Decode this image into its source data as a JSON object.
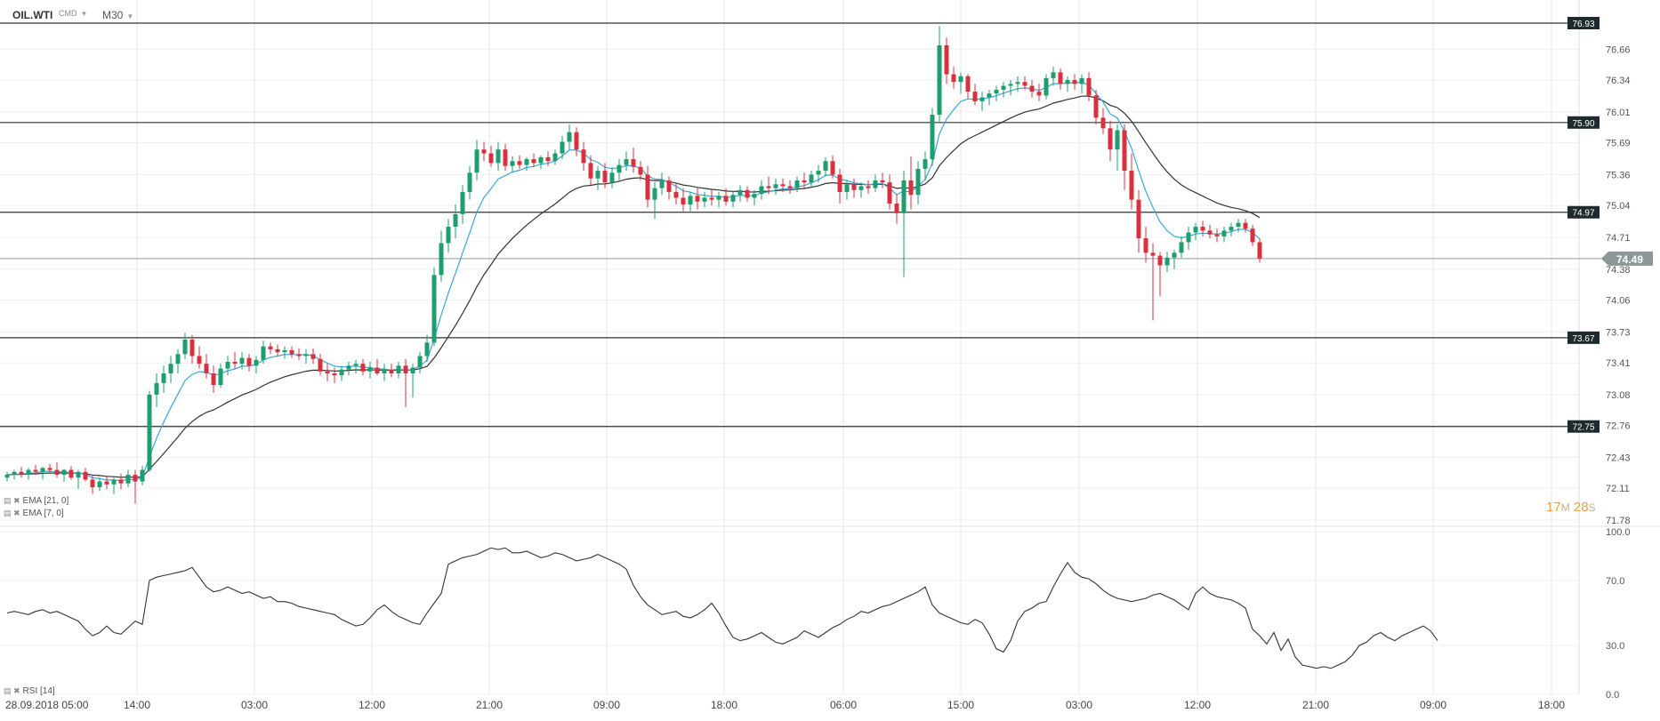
{
  "header": {
    "symbol": "OIL.WTI",
    "market": "CMD",
    "timeframe": "M30"
  },
  "indicators": [
    {
      "name": "EMA",
      "params": "[21, 0]"
    },
    {
      "name": "EMA",
      "params": "[7, 0]"
    },
    {
      "name": "RSI",
      "params": "[14]"
    }
  ],
  "timer": {
    "minutes": "17",
    "m_unit": "M",
    "seconds": "28",
    "s_unit": "S"
  },
  "colors": {
    "up": "#1e9e6e",
    "down": "#d9303e",
    "ema7": "#3aa7d8",
    "ema21": "#333333",
    "grid": "#e6e6e6"
  },
  "chart_data": {
    "type": "candlestick",
    "price_axis": {
      "ylim": [
        71.78,
        76.93
      ],
      "ticks": [
        "76.66",
        "76.34",
        "76.01",
        "75.69",
        "75.36",
        "75.04",
        "74.71",
        "74.38",
        "74.06",
        "73.73",
        "73.41",
        "73.08",
        "72.76",
        "72.43",
        "72.11",
        "71.78"
      ]
    },
    "current_price": "74.49",
    "levels": [
      "76.93",
      "75.90",
      "74.97",
      "73.67",
      "72.75"
    ],
    "x_labels": [
      "28.09.2018  05:00",
      "14:00",
      "03:00",
      "12:00",
      "21:00",
      "09:00",
      "18:00",
      "06:00",
      "15:00",
      "03:00",
      "12:00",
      "21:00",
      "09:00",
      "18:00"
    ],
    "rsi_axis": {
      "ylim": [
        0,
        100
      ],
      "ticks": [
        "100.0",
        "70.0",
        "30.0",
        "0.0"
      ]
    },
    "candles": [
      [
        72.22,
        72.28,
        72.18,
        72.25
      ],
      [
        72.25,
        72.3,
        72.2,
        72.28
      ],
      [
        72.28,
        72.33,
        72.22,
        72.25
      ],
      [
        72.25,
        72.32,
        72.2,
        72.3
      ],
      [
        72.3,
        72.35,
        72.25,
        72.28
      ],
      [
        72.28,
        72.33,
        72.2,
        72.32
      ],
      [
        72.32,
        72.36,
        72.26,
        72.3
      ],
      [
        72.3,
        72.38,
        72.22,
        72.25
      ],
      [
        72.25,
        72.31,
        72.18,
        72.3
      ],
      [
        72.3,
        72.34,
        72.2,
        72.22
      ],
      [
        72.22,
        72.3,
        72.1,
        72.28
      ],
      [
        72.28,
        72.32,
        72.18,
        72.2
      ],
      [
        72.2,
        72.25,
        72.05,
        72.12
      ],
      [
        72.12,
        72.22,
        72.08,
        72.18
      ],
      [
        72.18,
        72.24,
        72.1,
        72.15
      ],
      [
        72.15,
        72.22,
        72.05,
        72.2
      ],
      [
        72.2,
        72.26,
        72.1,
        72.16
      ],
      [
        72.16,
        72.3,
        72.12,
        72.25
      ],
      [
        72.25,
        72.3,
        71.95,
        72.18
      ],
      [
        72.18,
        72.34,
        72.14,
        72.3
      ],
      [
        72.3,
        73.12,
        72.28,
        73.08
      ],
      [
        73.08,
        73.3,
        72.95,
        73.2
      ],
      [
        73.2,
        73.38,
        73.1,
        73.3
      ],
      [
        73.3,
        73.48,
        73.2,
        73.4
      ],
      [
        73.4,
        73.55,
        73.3,
        73.5
      ],
      [
        73.5,
        73.72,
        73.45,
        73.65
      ],
      [
        73.65,
        73.7,
        73.4,
        73.48
      ],
      [
        73.48,
        73.58,
        73.35,
        73.4
      ],
      [
        73.4,
        73.5,
        73.25,
        73.3
      ],
      [
        73.3,
        73.38,
        73.1,
        73.18
      ],
      [
        73.18,
        73.4,
        73.15,
        73.35
      ],
      [
        73.35,
        73.48,
        73.28,
        73.42
      ],
      [
        73.42,
        73.52,
        73.35,
        73.4
      ],
      [
        73.4,
        73.52,
        73.34,
        73.46
      ],
      [
        73.46,
        73.5,
        73.32,
        73.38
      ],
      [
        73.38,
        73.48,
        73.3,
        73.44
      ],
      [
        73.44,
        73.64,
        73.4,
        73.58
      ],
      [
        73.58,
        73.62,
        73.5,
        73.55
      ],
      [
        73.55,
        73.6,
        73.48,
        73.52
      ],
      [
        73.52,
        73.58,
        73.45,
        73.54
      ],
      [
        73.54,
        73.58,
        73.46,
        73.5
      ],
      [
        73.5,
        73.56,
        73.44,
        73.48
      ],
      [
        73.48,
        73.55,
        73.4,
        73.5
      ],
      [
        73.5,
        73.56,
        73.4,
        73.45
      ],
      [
        73.45,
        73.5,
        73.28,
        73.32
      ],
      [
        73.32,
        73.4,
        73.22,
        73.3
      ],
      [
        73.3,
        73.36,
        73.2,
        73.28
      ],
      [
        73.28,
        73.38,
        73.22,
        73.34
      ],
      [
        73.34,
        73.42,
        73.28,
        73.38
      ],
      [
        73.38,
        73.44,
        73.3,
        73.4
      ],
      [
        73.4,
        73.45,
        73.28,
        73.32
      ],
      [
        73.32,
        73.42,
        73.25,
        73.36
      ],
      [
        73.36,
        73.45,
        73.28,
        73.3
      ],
      [
        73.3,
        73.4,
        73.22,
        73.34
      ],
      [
        73.34,
        73.4,
        73.26,
        73.3
      ],
      [
        73.3,
        73.42,
        73.25,
        73.38
      ],
      [
        73.38,
        73.45,
        72.95,
        73.3
      ],
      [
        73.3,
        73.4,
        73.05,
        73.36
      ],
      [
        73.36,
        73.52,
        73.3,
        73.48
      ],
      [
        73.48,
        73.7,
        73.42,
        73.62
      ],
      [
        73.62,
        74.4,
        73.58,
        74.32
      ],
      [
        74.32,
        74.78,
        74.25,
        74.65
      ],
      [
        74.65,
        74.9,
        74.55,
        74.82
      ],
      [
        74.82,
        75.05,
        74.7,
        74.95
      ],
      [
        74.95,
        75.25,
        74.85,
        75.18
      ],
      [
        75.18,
        75.45,
        75.1,
        75.38
      ],
      [
        75.38,
        75.72,
        75.3,
        75.62
      ],
      [
        75.62,
        75.7,
        75.5,
        75.58
      ],
      [
        75.58,
        75.66,
        75.44,
        75.48
      ],
      [
        75.48,
        75.7,
        75.4,
        75.62
      ],
      [
        75.62,
        75.68,
        75.4,
        75.45
      ],
      [
        75.45,
        75.55,
        75.38,
        75.5
      ],
      [
        75.5,
        75.56,
        75.42,
        75.46
      ],
      [
        75.46,
        75.54,
        75.4,
        75.52
      ],
      [
        75.52,
        75.58,
        75.44,
        75.48
      ],
      [
        75.48,
        75.56,
        75.42,
        75.54
      ],
      [
        75.54,
        75.6,
        75.45,
        75.5
      ],
      [
        75.5,
        75.62,
        75.46,
        75.58
      ],
      [
        75.58,
        75.76,
        75.52,
        75.7
      ],
      [
        75.7,
        75.88,
        75.62,
        75.8
      ],
      [
        75.8,
        75.85,
        75.55,
        75.62
      ],
      [
        75.62,
        75.7,
        75.4,
        75.48
      ],
      [
        75.48,
        75.56,
        75.25,
        75.32
      ],
      [
        75.32,
        75.45,
        75.2,
        75.4
      ],
      [
        75.4,
        75.48,
        75.22,
        75.28
      ],
      [
        75.28,
        75.44,
        75.22,
        75.38
      ],
      [
        75.38,
        75.52,
        75.3,
        75.46
      ],
      [
        75.46,
        75.6,
        75.4,
        75.52
      ],
      [
        75.52,
        75.64,
        75.38,
        75.44
      ],
      [
        75.44,
        75.5,
        75.3,
        75.36
      ],
      [
        75.36,
        75.45,
        75.02,
        75.1
      ],
      [
        75.1,
        75.28,
        74.9,
        75.22
      ],
      [
        75.22,
        75.38,
        75.15,
        75.3
      ],
      [
        75.3,
        75.34,
        75.1,
        75.18
      ],
      [
        75.18,
        75.28,
        75.05,
        75.12
      ],
      [
        75.12,
        75.22,
        74.98,
        75.05
      ],
      [
        75.05,
        75.18,
        74.98,
        75.14
      ],
      [
        75.14,
        75.22,
        75.0,
        75.08
      ],
      [
        75.08,
        75.18,
        75.02,
        75.12
      ],
      [
        75.12,
        75.2,
        75.04,
        75.1
      ],
      [
        75.1,
        75.18,
        75.02,
        75.14
      ],
      [
        75.14,
        75.22,
        75.04,
        75.08
      ],
      [
        75.08,
        75.18,
        75.02,
        75.15
      ],
      [
        75.15,
        75.25,
        75.08,
        75.2
      ],
      [
        75.2,
        75.24,
        75.08,
        75.12
      ],
      [
        75.12,
        75.2,
        75.04,
        75.16
      ],
      [
        75.16,
        75.3,
        75.1,
        75.24
      ],
      [
        75.24,
        75.34,
        75.16,
        75.22
      ],
      [
        75.22,
        75.32,
        75.15,
        75.26
      ],
      [
        75.26,
        75.32,
        75.18,
        75.24
      ],
      [
        75.24,
        75.3,
        75.16,
        75.22
      ],
      [
        75.22,
        75.34,
        75.18,
        75.3
      ],
      [
        75.3,
        75.38,
        75.22,
        75.28
      ],
      [
        75.28,
        75.4,
        75.22,
        75.36
      ],
      [
        75.36,
        75.46,
        75.28,
        75.4
      ],
      [
        75.4,
        75.54,
        75.34,
        75.5
      ],
      [
        75.5,
        75.56,
        75.32,
        75.36
      ],
      [
        75.36,
        75.42,
        75.06,
        75.18
      ],
      [
        75.18,
        75.3,
        75.1,
        75.26
      ],
      [
        75.26,
        75.32,
        75.12,
        75.2
      ],
      [
        75.2,
        75.28,
        75.12,
        75.24
      ],
      [
        75.24,
        75.3,
        75.16,
        75.22
      ],
      [
        75.22,
        75.36,
        75.18,
        75.3
      ],
      [
        75.3,
        75.38,
        75.22,
        75.28
      ],
      [
        75.28,
        75.36,
        75.0,
        75.06
      ],
      [
        75.06,
        75.16,
        74.85,
        74.96
      ],
      [
        74.96,
        75.4,
        74.3,
        75.3
      ],
      [
        75.3,
        75.55,
        75.0,
        75.15
      ],
      [
        75.15,
        75.5,
        75.05,
        75.42
      ],
      [
        75.42,
        75.6,
        75.3,
        75.52
      ],
      [
        75.52,
        76.05,
        75.45,
        75.98
      ],
      [
        75.98,
        76.9,
        75.9,
        76.7
      ],
      [
        76.7,
        76.78,
        76.3,
        76.4
      ],
      [
        76.4,
        76.48,
        76.25,
        76.32
      ],
      [
        76.32,
        76.42,
        76.2,
        76.38
      ],
      [
        76.38,
        76.4,
        76.15,
        76.22
      ],
      [
        76.22,
        76.3,
        76.08,
        76.12
      ],
      [
        76.12,
        76.22,
        76.02,
        76.16
      ],
      [
        76.16,
        76.24,
        76.08,
        76.2
      ],
      [
        76.2,
        76.28,
        76.12,
        76.24
      ],
      [
        76.24,
        76.32,
        76.16,
        76.28
      ],
      [
        76.28,
        76.34,
        76.18,
        76.3
      ],
      [
        76.3,
        76.38,
        76.22,
        76.32
      ],
      [
        76.32,
        76.38,
        76.24,
        76.28
      ],
      [
        76.28,
        76.34,
        76.16,
        76.22
      ],
      [
        76.22,
        76.3,
        76.12,
        76.18
      ],
      [
        76.18,
        76.4,
        76.14,
        76.36
      ],
      [
        76.36,
        76.48,
        76.28,
        76.42
      ],
      [
        76.42,
        76.46,
        76.24,
        76.3
      ],
      [
        76.3,
        76.38,
        76.22,
        76.34
      ],
      [
        76.34,
        76.4,
        76.24,
        76.3
      ],
      [
        76.3,
        76.4,
        76.2,
        76.36
      ],
      [
        76.36,
        76.42,
        76.12,
        76.18
      ],
      [
        76.18,
        76.24,
        75.88,
        75.95
      ],
      [
        75.95,
        76.05,
        75.78,
        75.84
      ],
      [
        75.84,
        75.92,
        75.5,
        75.62
      ],
      [
        75.62,
        75.88,
        75.4,
        75.82
      ],
      [
        75.82,
        75.88,
        75.2,
        75.4
      ],
      [
        75.4,
        75.58,
        75.0,
        75.1
      ],
      [
        75.1,
        75.2,
        74.55,
        74.7
      ],
      [
        74.7,
        74.82,
        74.45,
        74.55
      ],
      [
        74.55,
        74.65,
        73.85,
        74.52
      ],
      [
        74.52,
        74.56,
        74.1,
        74.42
      ],
      [
        74.42,
        74.56,
        74.35,
        74.5
      ],
      [
        74.5,
        74.58,
        74.38,
        74.55
      ],
      [
        74.55,
        74.72,
        74.5,
        74.66
      ],
      [
        74.66,
        74.82,
        74.58,
        74.76
      ],
      [
        74.76,
        74.86,
        74.68,
        74.82
      ],
      [
        74.82,
        74.88,
        74.72,
        74.78
      ],
      [
        74.78,
        74.84,
        74.7,
        74.74
      ],
      [
        74.74,
        74.8,
        74.66,
        74.72
      ],
      [
        74.72,
        74.82,
        74.66,
        74.78
      ],
      [
        74.78,
        74.86,
        74.72,
        74.82
      ],
      [
        74.82,
        74.9,
        74.76,
        74.86
      ],
      [
        74.86,
        74.9,
        74.76,
        74.8
      ],
      [
        74.8,
        74.84,
        74.62,
        74.66
      ],
      [
        74.66,
        74.7,
        74.45,
        74.49
      ]
    ],
    "rsi": [
      50,
      51,
      50,
      49,
      51,
      52,
      50,
      51,
      49,
      47,
      45,
      40,
      36,
      38,
      42,
      38,
      37,
      41,
      45,
      43,
      70,
      72,
      73,
      74,
      75,
      76,
      78,
      72,
      66,
      63,
      64,
      66,
      64,
      62,
      63,
      61,
      59,
      60,
      57,
      57,
      56,
      54,
      53,
      52,
      51,
      50,
      49,
      46,
      44,
      42,
      43,
      47,
      52,
      55,
      51,
      48,
      46,
      44,
      43,
      50,
      56,
      62,
      80,
      82,
      84,
      85,
      86,
      88,
      90,
      89,
      90,
      87,
      87,
      88,
      86,
      84,
      85,
      87,
      86,
      84,
      82,
      83,
      84,
      86,
      84,
      82,
      80,
      77,
      67,
      60,
      55,
      52,
      49,
      50,
      51,
      48,
      47,
      49,
      52,
      56,
      50,
      42,
      35,
      33,
      34,
      36,
      38,
      35,
      32,
      31,
      33,
      35,
      39,
      37,
      35,
      38,
      41,
      43,
      46,
      48,
      51,
      50,
      52,
      54,
      55,
      57,
      59,
      61,
      63,
      66,
      55,
      50,
      48,
      46,
      44,
      43,
      46,
      44,
      37,
      28,
      26,
      33,
      45,
      51,
      53,
      56,
      57,
      66,
      74,
      81,
      75,
      72,
      71,
      68,
      64,
      61,
      59,
      58,
      57,
      58,
      59,
      61,
      62,
      60,
      58,
      55,
      52,
      62,
      66,
      62,
      60,
      59,
      58,
      56,
      53,
      40,
      36,
      31,
      38,
      27,
      34,
      23,
      18,
      17,
      16,
      17,
      16,
      18,
      20,
      24,
      30,
      32,
      36,
      38,
      35,
      33,
      36,
      38,
      40,
      42,
      39,
      33
    ]
  }
}
